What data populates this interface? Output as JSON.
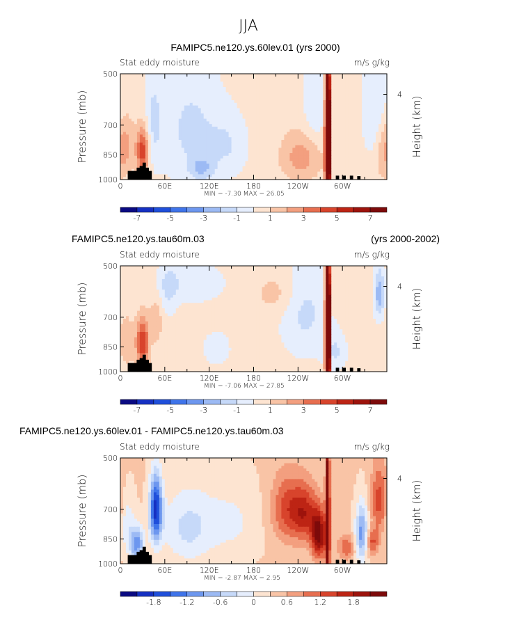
{
  "figure_title": "JJA",
  "colors": {
    "scale": [
      "#0a0a82",
      "#1530c2",
      "#1f4fdb",
      "#3f74ea",
      "#6d97ef",
      "#9cbaf4",
      "#c6d9f9",
      "#e6eefd",
      "#fde4d1",
      "#f9c4a6",
      "#f39f7f",
      "#e76e4f",
      "#d8442c",
      "#bd2414",
      "#9d130c",
      "#7d0a0a"
    ],
    "topography": "#000000",
    "frame": "#000000"
  },
  "chart_data": [
    {
      "type": "heatmap",
      "title_left": "FAMIPC5.ne120.ys.60lev.01 (yrs 2000)",
      "title_right": "",
      "subtitle_left": "Stat eddy moisture",
      "subtitle_right": "m/s g/kg",
      "ylabel": "Pressure (mb)",
      "ylabel_right": "Height (km)",
      "yticks": [
        "500",
        "700",
        "850",
        "1000"
      ],
      "ytick_values": [
        500,
        700,
        850,
        1000
      ],
      "right_ticks": [
        "4"
      ],
      "right_tick_values": [
        4
      ],
      "xticks": [
        "0",
        "60E",
        "120E",
        "180",
        "120W",
        "60W"
      ],
      "xtick_values": [
        0,
        60,
        120,
        180,
        240,
        300
      ],
      "xlim": [
        0,
        360
      ],
      "ylim": [
        1000,
        500
      ],
      "minmax": "MIN = -7.30   MAX =  26.05",
      "min": -7.3,
      "max": 26.05,
      "colorbar_labels": [
        "-7",
        "-5",
        "-3",
        "-1",
        "1",
        "3",
        "5",
        "7"
      ],
      "levels": [
        -7,
        -6,
        -5,
        -4,
        -3,
        -2,
        -1,
        0,
        1,
        2,
        3,
        4,
        5,
        6,
        7
      ],
      "features": [
        {
          "lon": 280,
          "p": 800,
          "value": 26.05,
          "wx": 2,
          "wp": 200
        },
        {
          "lon": 280,
          "p": 650,
          "value": 8,
          "wx": 2,
          "wp": 250
        },
        {
          "lon": 30,
          "p": 830,
          "value": 4.5,
          "wx": 6,
          "wp": 90
        },
        {
          "lon": 8,
          "p": 800,
          "value": 1.8,
          "wx": 8,
          "wp": 110
        },
        {
          "lon": 245,
          "p": 860,
          "value": 2.2,
          "wx": 20,
          "wp": 100
        },
        {
          "lon": 355,
          "p": 830,
          "value": 1.5,
          "wx": 8,
          "wp": 120
        },
        {
          "lon": 45,
          "p": 680,
          "value": -1.4,
          "wx": 8,
          "wp": 150
        },
        {
          "lon": 95,
          "p": 720,
          "value": -1.6,
          "wx": 28,
          "wp": 190
        },
        {
          "lon": 145,
          "p": 800,
          "value": -1.2,
          "wx": 18,
          "wp": 110
        },
        {
          "lon": 262,
          "p": 620,
          "value": -1.3,
          "wx": 10,
          "wp": 140
        },
        {
          "lon": 345,
          "p": 620,
          "value": -1.4,
          "wx": 12,
          "wp": 160
        },
        {
          "lon": 110,
          "p": 930,
          "value": -2.0,
          "wx": 12,
          "wp": 50
        }
      ],
      "topography": [
        [
          10,
          945
        ],
        [
          14,
          945
        ],
        [
          18,
          945
        ],
        [
          22,
          925
        ],
        [
          26,
          915
        ],
        [
          30,
          895
        ],
        [
          34,
          925
        ],
        [
          38,
          945
        ],
        [
          291,
          975
        ],
        [
          300,
          975
        ],
        [
          310,
          975
        ],
        [
          320,
          978
        ]
      ]
    },
    {
      "type": "heatmap",
      "title_left": "FAMIPC5.ne120.ys.tau60m.03",
      "title_right": "(yrs 2000-2002)",
      "subtitle_left": "Stat eddy moisture",
      "subtitle_right": "m/s g/kg",
      "ylabel": "Pressure (mb)",
      "ylabel_right": "Height (km)",
      "yticks": [
        "500",
        "700",
        "850",
        "1000"
      ],
      "ytick_values": [
        500,
        700,
        850,
        1000
      ],
      "right_ticks": [
        "4"
      ],
      "right_tick_values": [
        4
      ],
      "xticks": [
        "0",
        "60E",
        "120E",
        "180",
        "120W",
        "60W"
      ],
      "xtick_values": [
        0,
        60,
        120,
        180,
        240,
        300
      ],
      "xlim": [
        0,
        360
      ],
      "ylim": [
        1000,
        500
      ],
      "minmax": "MIN = -7.06   MAX =  27.85",
      "min": -7.06,
      "max": 27.85,
      "colorbar_labels": [
        "-7",
        "-5",
        "-3",
        "-1",
        "1",
        "3",
        "5",
        "7"
      ],
      "levels": [
        -7,
        -6,
        -5,
        -4,
        -3,
        -2,
        -1,
        0,
        1,
        2,
        3,
        4,
        5,
        6,
        7
      ],
      "features": [
        {
          "lon": 280,
          "p": 800,
          "value": 27.85,
          "wx": 2,
          "wp": 200
        },
        {
          "lon": 280,
          "p": 650,
          "value": 7,
          "wx": 2,
          "wp": 220
        },
        {
          "lon": 30,
          "p": 830,
          "value": 4.8,
          "wx": 6,
          "wp": 90
        },
        {
          "lon": 48,
          "p": 720,
          "value": 1.6,
          "wx": 6,
          "wp": 70
        },
        {
          "lon": 8,
          "p": 820,
          "value": 1.2,
          "wx": 8,
          "wp": 110
        },
        {
          "lon": 250,
          "p": 680,
          "value": -1.6,
          "wx": 22,
          "wp": 140
        },
        {
          "lon": 290,
          "p": 880,
          "value": -1.5,
          "wx": 10,
          "wp": 70
        },
        {
          "lon": 350,
          "p": 600,
          "value": -3.0,
          "wx": 5,
          "wp": 70
        },
        {
          "lon": 95,
          "p": 560,
          "value": -1.2,
          "wx": 30,
          "wp": 50
        },
        {
          "lon": 65,
          "p": 580,
          "value": -1.3,
          "wx": 8,
          "wp": 70
        },
        {
          "lon": 130,
          "p": 860,
          "value": -1.1,
          "wx": 12,
          "wp": 60
        },
        {
          "lon": 210,
          "p": 600,
          "value": 1.1,
          "wx": 20,
          "wp": 60
        }
      ],
      "topography": [
        [
          10,
          945
        ],
        [
          14,
          945
        ],
        [
          18,
          945
        ],
        [
          22,
          925
        ],
        [
          26,
          915
        ],
        [
          30,
          895
        ],
        [
          34,
          925
        ],
        [
          38,
          945
        ],
        [
          291,
          975
        ],
        [
          300,
          975
        ],
        [
          310,
          975
        ],
        [
          320,
          978
        ]
      ]
    },
    {
      "type": "heatmap",
      "title_left": "FAMIPC5.ne120.ys.60lev.01 - FAMIPC5.ne120.ys.tau60m.03",
      "title_right": "",
      "subtitle_left": "Stat eddy moisture",
      "subtitle_right": "m/s g/kg",
      "ylabel": "Pressure (mb)",
      "ylabel_right": "Height (km)",
      "yticks": [
        "500",
        "700",
        "850",
        "1000"
      ],
      "ytick_values": [
        500,
        700,
        850,
        1000
      ],
      "right_ticks": [
        "4"
      ],
      "right_tick_values": [
        4
      ],
      "xticks": [
        "0",
        "60E",
        "120E",
        "180",
        "120W",
        "60W"
      ],
      "xtick_values": [
        0,
        60,
        120,
        180,
        240,
        300
      ],
      "xlim": [
        0,
        360
      ],
      "ylim": [
        1000,
        500
      ],
      "minmax": "MIN =  -2.87   MAX =   2.95",
      "min": -2.87,
      "max": 2.95,
      "colorbar_labels": [
        "-1.8",
        "-1.2",
        "-0.6",
        "0",
        "0.6",
        "1.2",
        "1.8"
      ],
      "levels": [
        -2.1,
        -1.8,
        -1.5,
        -1.2,
        -0.9,
        -0.6,
        -0.3,
        0,
        0.3,
        0.6,
        0.9,
        1.2,
        1.5,
        1.8,
        2.1
      ],
      "features": [
        {
          "lon": 280,
          "p": 750,
          "value": 2.95,
          "wx": 2,
          "wp": 250
        },
        {
          "lon": 48,
          "p": 700,
          "value": -2.2,
          "wx": 6,
          "wp": 110
        },
        {
          "lon": 22,
          "p": 880,
          "value": -1.4,
          "wx": 7,
          "wp": 70
        },
        {
          "lon": 268,
          "p": 830,
          "value": 1.9,
          "wx": 7,
          "wp": 90
        },
        {
          "lon": 226,
          "p": 700,
          "value": 1.0,
          "wx": 16,
          "wp": 110
        },
        {
          "lon": 250,
          "p": 720,
          "value": 1.1,
          "wx": 12,
          "wp": 90
        },
        {
          "lon": 350,
          "p": 660,
          "value": 1.0,
          "wx": 8,
          "wp": 110
        },
        {
          "lon": 326,
          "p": 820,
          "value": -1.4,
          "wx": 6,
          "wp": 110
        },
        {
          "lon": 90,
          "p": 790,
          "value": -0.7,
          "wx": 24,
          "wp": 140
        },
        {
          "lon": 150,
          "p": 760,
          "value": -0.4,
          "wx": 30,
          "wp": 140
        },
        {
          "lon": 8,
          "p": 760,
          "value": -0.5,
          "wx": 8,
          "wp": 110
        },
        {
          "lon": 305,
          "p": 900,
          "value": 0.8,
          "wx": 8,
          "wp": 50
        },
        {
          "lon": 340,
          "p": 870,
          "value": 0.9,
          "wx": 6,
          "wp": 50
        }
      ],
      "topography": [
        [
          10,
          945
        ],
        [
          14,
          945
        ],
        [
          18,
          945
        ],
        [
          22,
          925
        ],
        [
          26,
          915
        ],
        [
          30,
          895
        ],
        [
          34,
          925
        ],
        [
          38,
          945
        ],
        [
          291,
          975
        ],
        [
          300,
          975
        ],
        [
          310,
          975
        ],
        [
          320,
          978
        ]
      ]
    }
  ]
}
